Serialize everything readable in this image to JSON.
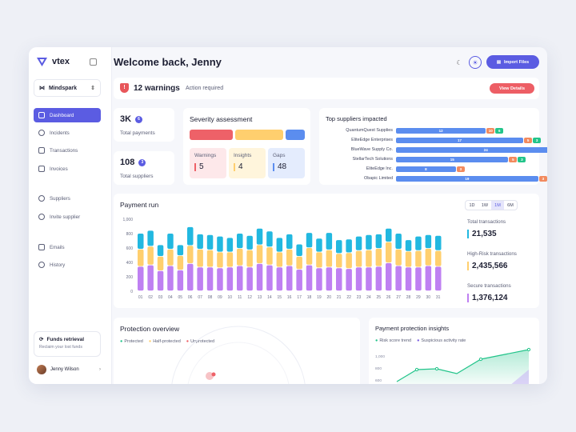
{
  "brand": {
    "name": "vtex",
    "workspace": "Mindspark"
  },
  "nav": [
    {
      "label": "Dashboard",
      "icon": "dashboard-icon"
    },
    {
      "label": "Incidents",
      "icon": "alert-icon"
    },
    {
      "label": "Transactions",
      "icon": "transactions-icon"
    },
    {
      "label": "Invoices",
      "icon": "invoice-icon"
    },
    {
      "label": "Suppliers",
      "icon": "suppliers-icon"
    },
    {
      "label": "Invite supplier",
      "icon": "invite-icon"
    },
    {
      "label": "Emails",
      "icon": "email-icon"
    },
    {
      "label": "History",
      "icon": "history-icon"
    }
  ],
  "funds": {
    "title": "Funds retrieval",
    "subtitle": "Reclaim your lost funds"
  },
  "user": {
    "name": "Jenny Wilson"
  },
  "header": {
    "welcome": "Welcome back, Jenny",
    "import_label": "Import Files"
  },
  "warning": {
    "count_text": "12 warnings",
    "sub": "Action required",
    "button": "View Details"
  },
  "stats": [
    {
      "value": "3K",
      "badge": "6",
      "label": "Total payments"
    },
    {
      "value": "108",
      "badge": "3",
      "label": "Total suppliers"
    }
  ],
  "severity": {
    "title": "Severity assessment",
    "boxes": [
      {
        "label": "Warnings",
        "value": "5"
      },
      {
        "label": "Insights",
        "value": "4"
      },
      {
        "label": "Gaps",
        "value": "48"
      }
    ]
  },
  "suppliers": {
    "title": "Top suppliers impacted",
    "rows": [
      {
        "name": "QuantumQuest Supplies",
        "a": "12",
        "b": "10",
        "c": "6"
      },
      {
        "name": "EliteEdge Enterprises",
        "a": "17",
        "b": "5",
        "c": "3"
      },
      {
        "name": "BlueWave Supply Co.",
        "a": "24",
        "b": "",
        "c": ""
      },
      {
        "name": "StellarTech Solutions",
        "a": "15",
        "b": "5",
        "c": "3"
      },
      {
        "name": "EliteEdge Inc.",
        "a": "8",
        "b": "3",
        "c": ""
      },
      {
        "name": "Obapic Limited",
        "a": "19",
        "b": "3",
        "c": "2"
      }
    ]
  },
  "payment": {
    "title": "Payment run",
    "timeframes": [
      "1D",
      "1W",
      "1M",
      "6M"
    ],
    "selected": "1M",
    "totals": [
      {
        "label": "Total transactions",
        "value": "21,535"
      },
      {
        "label": "High-Risk transactions",
        "value": "2,435,566"
      },
      {
        "label": "Secure transactions",
        "value": "1,376,124"
      }
    ]
  },
  "chart_data": {
    "type": "bar",
    "categories": [
      "01",
      "02",
      "03",
      "04",
      "05",
      "06",
      "07",
      "08",
      "09",
      "10",
      "11",
      "12",
      "13",
      "14",
      "15",
      "16",
      "17",
      "18",
      "19",
      "20",
      "21",
      "22",
      "23",
      "24",
      "25",
      "26",
      "27",
      "28",
      "29",
      "30",
      "31"
    ],
    "yticks": [
      "1,000",
      "800",
      "600",
      "400",
      "200",
      "0"
    ],
    "ylim": [
      0,
      1000
    ],
    "series": [
      {
        "values": [
          340,
          360,
          280,
          350,
          290,
          380,
          330,
          330,
          320,
          330,
          350,
          330,
          380,
          360,
          330,
          350,
          300,
          360,
          320,
          330,
          320,
          310,
          330,
          330,
          340,
          390,
          350,
          330,
          330,
          350,
          340
        ]
      },
      {
        "values": [
          240,
          260,
          200,
          230,
          200,
          250,
          250,
          240,
          220,
          210,
          240,
          240,
          260,
          250,
          210,
          230,
          180,
          240,
          220,
          240,
          200,
          220,
          230,
          240,
          250,
          290,
          230,
          220,
          230,
          240,
          220
        ]
      },
      {
        "values": [
          220,
          220,
          160,
          220,
          150,
          260,
          210,
          210,
          220,
          200,
          210,
          200,
          230,
          220,
          200,
          210,
          170,
          210,
          190,
          240,
          190,
          190,
          200,
          210,
          200,
          190,
          220,
          160,
          200,
          190,
          210
        ]
      }
    ],
    "colors": [
      "#bf80f2",
      "#ffcf6e",
      "#22b8e0"
    ]
  },
  "protection": {
    "title": "Protection overview",
    "legend": [
      "Protected",
      "Half-protected",
      "Unprotected"
    ]
  },
  "insights": {
    "title": "Payment protection insights",
    "legend": [
      "Risk score trend",
      "Suspicious activity rate"
    ],
    "yticks": [
      "1,000",
      "800",
      "600"
    ]
  }
}
